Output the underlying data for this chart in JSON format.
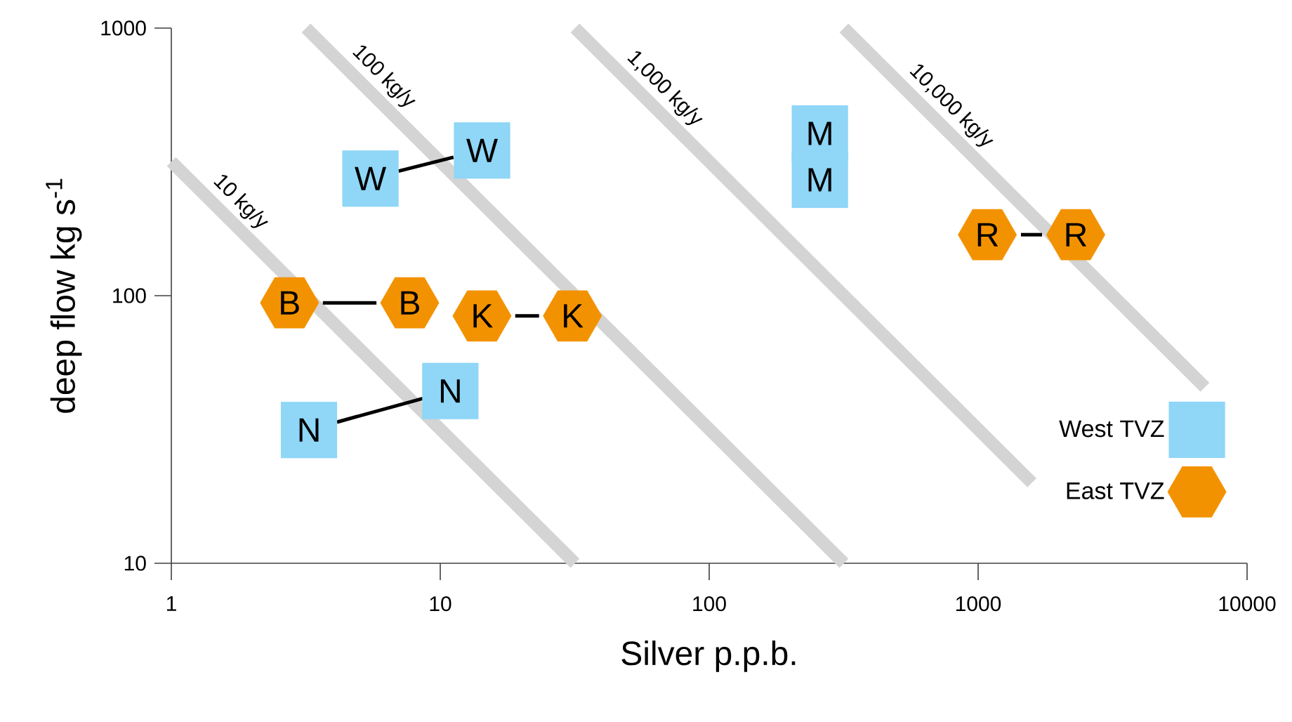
{
  "chart_data": {
    "type": "scatter",
    "xlabel": "Silver p.p.b.",
    "ylabel": "deep flow kg s$^{-1}$",
    "log": "xy",
    "xlim": [
      1,
      10000
    ],
    "ylim": [
      10,
      1000
    ],
    "xticks": [
      1,
      10,
      100,
      1000,
      10000
    ],
    "yticks": [
      10,
      100,
      1000
    ],
    "legend": "bottom right",
    "series": [
      {
        "type": "line",
        "color": "#d4d4d4",
        "x": [
          1,
          31.7
        ],
        "values": [
          317,
          10
        ]
      },
      {
        "type": "line",
        "color": "#d4d4d4",
        "x": [
          3.17,
          317
        ],
        "values": [
          1000,
          10
        ]
      },
      {
        "type": "line",
        "color": "#d4d4d4",
        "x": [
          31.7,
          1585
        ],
        "values": [
          1000,
          20
        ]
      },
      {
        "type": "line",
        "color": "#d4d4d4",
        "x": [
          317,
          6970
        ],
        "values": [
          1000,
          45.5
        ]
      },
      {
        "name": "West TVZ",
        "color": "#8fd6f7",
        "marker": "square",
        "x": [
          5.5,
          14.3,
          258,
          258,
          3.25,
          10.9
        ],
        "values": [
          274,
          349,
          404,
          271,
          31.5,
          44
        ]
      },
      {
        "name": "East TVZ",
        "color": "#f39200",
        "x": [
          2.75,
          7.7,
          14.3,
          31,
          1082,
          2306
        ],
        "values": [
          94,
          94,
          84,
          84,
          169,
          169
        ]
      },
      {
        "type": "line",
        "color": "#000000",
        "x": [
          7.0,
          11.2
        ],
        "values": [
          292,
          329
        ]
      },
      {
        "type": "line",
        "color": "#000000",
        "x": [
          4.13,
          8.61
        ],
        "values": [
          33.7,
          41.3
        ]
      },
      {
        "type": "line",
        "color": "#000000",
        "x": [
          3.66,
          5.79
        ],
        "values": [
          94,
          94
        ]
      },
      {
        "type": "line",
        "color": "#000000",
        "x": [
          19.0,
          23.3
        ],
        "values": [
          84,
          84
        ]
      },
      {
        "type": "line",
        "color": "#000000",
        "x": [
          1443,
          1729
        ],
        "values": [
          169,
          169
        ]
      }
    ],
    "annotations": [
      {
        "text": "10 kg/y",
        "x": 1.6,
        "y": 198
      },
      {
        "text": "100 kg/y",
        "x": 5.45,
        "y": 582
      },
      {
        "text": "1,000 kg/y",
        "x": 60.4,
        "y": 525
      },
      {
        "text": "10,000 kg/y",
        "x": 702,
        "y": 452
      },
      {
        "text": "W",
        "x": 5.5,
        "y": 274
      },
      {
        "text": "W",
        "x": 14.3,
        "y": 349
      },
      {
        "text": "M",
        "x": 258,
        "y": 404
      },
      {
        "text": "M",
        "x": 258,
        "y": 271
      },
      {
        "text": "N",
        "x": 3.25,
        "y": 31.5
      },
      {
        "text": "N",
        "x": 10.9,
        "y": 44
      },
      {
        "text": "B",
        "x": 2.75,
        "y": 94
      },
      {
        "text": "B",
        "x": 7.7,
        "y": 94
      },
      {
        "text": "K",
        "x": 14.3,
        "y": 84
      },
      {
        "text": "K",
        "x": 31,
        "y": 84
      },
      {
        "text": "R",
        "x": 1082,
        "y": 169
      },
      {
        "text": "R",
        "x": 2306,
        "y": 169
      }
    ]
  }
}
